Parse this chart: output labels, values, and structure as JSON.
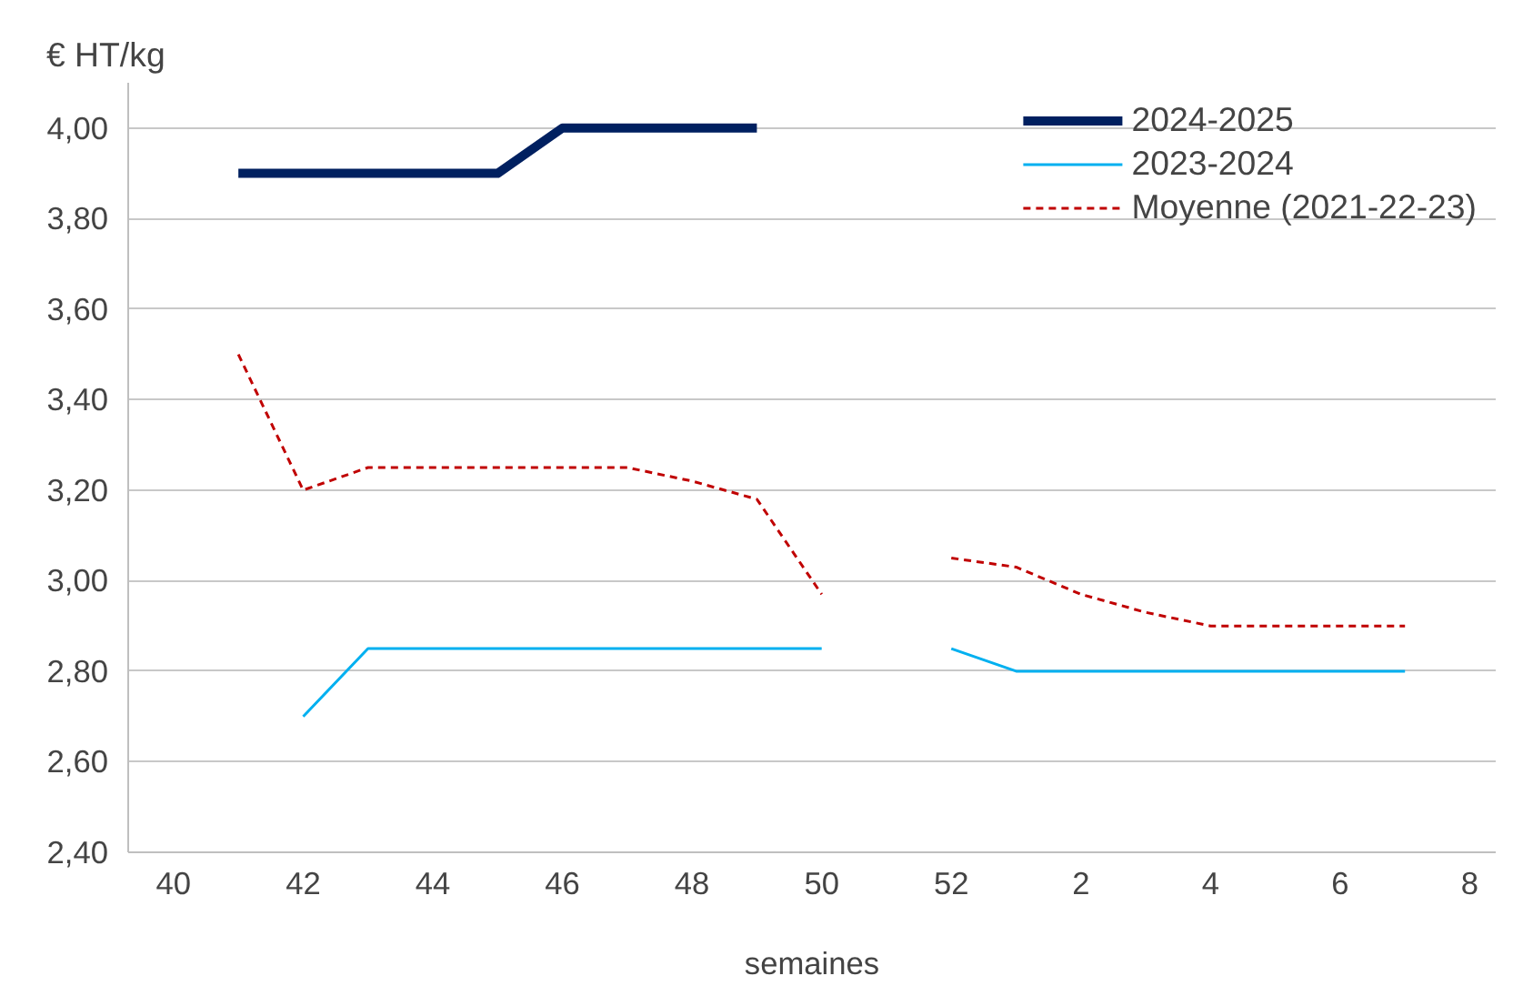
{
  "chart_data": {
    "type": "line",
    "ylabel": "€ HT/kg",
    "xlabel": "semaines",
    "categories": [
      "40",
      null,
      "42",
      null,
      "44",
      null,
      "46",
      null,
      "48",
      null,
      "50",
      null,
      "52",
      null,
      "2",
      null,
      "4",
      null,
      "6",
      null,
      "8"
    ],
    "ylim": [
      2.4,
      4.1
    ],
    "yticks": [
      {
        "value": 2.4,
        "label": "2,40"
      },
      {
        "value": 2.6,
        "label": "2,60"
      },
      {
        "value": 2.8,
        "label": "2,80"
      },
      {
        "value": 3.0,
        "label": "3,00"
      },
      {
        "value": 3.2,
        "label": "3,20"
      },
      {
        "value": 3.4,
        "label": "3,40"
      },
      {
        "value": 3.6,
        "label": "3,60"
      },
      {
        "value": 3.8,
        "label": "3,80"
      },
      {
        "value": 4.0,
        "label": "4,00"
      }
    ],
    "grid": "y",
    "legend": "top right",
    "series": [
      {
        "name": "2024-2025",
        "color": "#002060",
        "line_style": "solid",
        "values": [
          null,
          3.9,
          3.9,
          3.9,
          3.9,
          3.9,
          4.0,
          4.0,
          4.0,
          4.0,
          null,
          null,
          null,
          null,
          null,
          null,
          null,
          null,
          null,
          null,
          null
        ]
      },
      {
        "name": "2023-2024",
        "color": "#00b0f0",
        "line_style": "solid",
        "values": [
          null,
          null,
          2.7,
          2.85,
          2.85,
          2.85,
          2.85,
          2.85,
          2.85,
          2.85,
          2.85,
          null,
          2.85,
          2.8,
          2.8,
          2.8,
          2.8,
          2.8,
          2.8,
          2.8,
          null
        ]
      },
      {
        "name": "Moyenne (2021-22-23)",
        "color": "#c00000",
        "line_style": "dashed",
        "values": [
          null,
          3.5,
          3.2,
          3.25,
          3.25,
          3.25,
          3.25,
          3.25,
          3.22,
          3.18,
          2.97,
          null,
          3.05,
          3.03,
          2.97,
          2.93,
          2.9,
          2.9,
          2.9,
          2.9,
          null
        ]
      }
    ]
  }
}
